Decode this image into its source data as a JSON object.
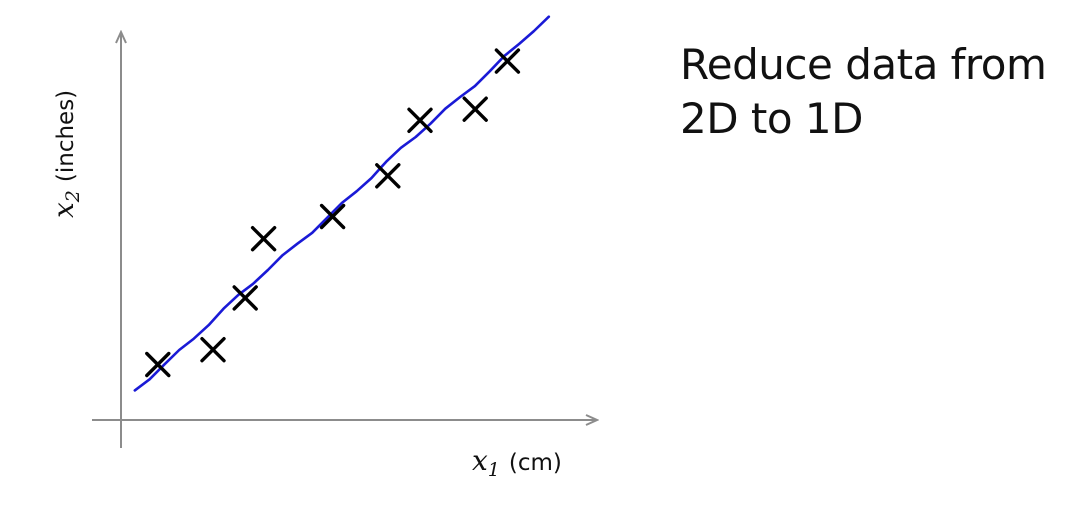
{
  "heading": {
    "line1": "Reduce data from",
    "line2": "2D to 1D"
  },
  "chart_data": {
    "type": "scatter",
    "x_label": {
      "symbol": "x",
      "subscript": "1",
      "unit": "(cm)"
    },
    "y_label": {
      "symbol": "x",
      "subscript": "2",
      "unit": "(inches)"
    },
    "ticks_shown": false,
    "grid": false,
    "xlim": [
      0,
      10
    ],
    "ylim": [
      0,
      10
    ],
    "points": [
      {
        "x": 0.8,
        "y": 1.5
      },
      {
        "x": 2.0,
        "y": 1.9
      },
      {
        "x": 2.7,
        "y": 3.3
      },
      {
        "x": 3.1,
        "y": 4.9
      },
      {
        "x": 4.6,
        "y": 5.5
      },
      {
        "x": 5.8,
        "y": 6.6
      },
      {
        "x": 6.5,
        "y": 8.1
      },
      {
        "x": 7.7,
        "y": 8.4
      },
      {
        "x": 8.4,
        "y": 9.7
      }
    ],
    "projection_line": {
      "from": {
        "x": 0.3,
        "y": 0.8
      },
      "to": {
        "x": 9.3,
        "y": 10.9
      }
    },
    "colors": {
      "points": "#000000",
      "line": "#1a1ad6",
      "axes": "#8c8c8c",
      "text": "#111111"
    }
  }
}
